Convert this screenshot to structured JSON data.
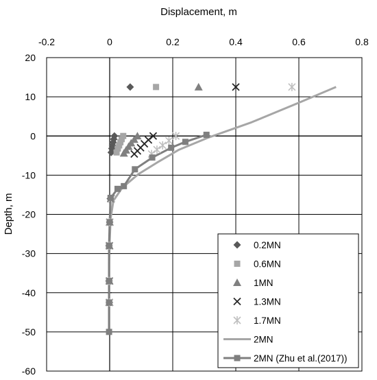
{
  "chart_data": {
    "type": "scatter",
    "title": "",
    "xlabel": "Displacement, m",
    "ylabel": "Depth, m",
    "xlim": [
      -0.2,
      0.8
    ],
    "ylim": [
      -60,
      20
    ],
    "x_ticks": [
      -0.2,
      0,
      0.2,
      0.4,
      0.6,
      0.8
    ],
    "y_ticks": [
      20,
      10,
      0,
      -10,
      -20,
      -30,
      -40,
      -50,
      -60
    ],
    "x_tick_labels": [
      "-0.2",
      "0",
      "0.2",
      "0.4",
      "0.6",
      "0.8"
    ],
    "y_tick_labels": [
      "20",
      "10",
      "0",
      "-10",
      "-20",
      "-30",
      "-40",
      "-50",
      "-60"
    ],
    "x_axis_position": "top",
    "grid": true,
    "legend_position": "bottom-right",
    "series": [
      {
        "name": "0.2MN",
        "marker": "diamond",
        "color": "#595959",
        "points": [
          [
            0.065,
            12.5
          ],
          [
            0.015,
            0
          ],
          [
            0.013,
            -0.8
          ],
          [
            0.011,
            -1.6
          ],
          [
            0.009,
            -2.4
          ],
          [
            0.007,
            -3.2
          ],
          [
            0.005,
            -4.2
          ],
          [
            0.002,
            -16
          ],
          [
            0.0,
            -22
          ],
          [
            -0.002,
            -28
          ],
          [
            -0.002,
            -37
          ],
          [
            -0.001,
            -42.5
          ]
        ]
      },
      {
        "name": "0.6MN",
        "marker": "square",
        "color": "#a6a6a6",
        "points": [
          [
            0.147,
            12.5
          ],
          [
            0.043,
            0
          ],
          [
            0.038,
            -0.8
          ],
          [
            0.034,
            -1.6
          ],
          [
            0.03,
            -2.4
          ],
          [
            0.026,
            -3.2
          ],
          [
            0.022,
            -4.2
          ],
          [
            0.003,
            -16
          ],
          [
            0.0,
            -22
          ],
          [
            -0.001,
            -28
          ],
          [
            -0.001,
            -37
          ],
          [
            -0.001,
            -42.5
          ]
        ]
      },
      {
        "name": "1MN",
        "marker": "triangle",
        "color": "#808080",
        "points": [
          [
            0.282,
            12.5
          ],
          [
            0.088,
            0
          ],
          [
            0.078,
            -0.9
          ],
          [
            0.068,
            -1.8
          ],
          [
            0.06,
            -2.7
          ],
          [
            0.052,
            -3.6
          ],
          [
            0.045,
            -4.4
          ],
          [
            0.004,
            -16
          ],
          [
            0.0,
            -22
          ],
          [
            -0.001,
            -28
          ],
          [
            -0.001,
            -37
          ],
          [
            -0.001,
            -42.5
          ]
        ]
      },
      {
        "name": "1.3MN",
        "marker": "x",
        "color": "#262626",
        "points": [
          [
            0.4,
            12.5
          ],
          [
            0.138,
            0
          ],
          [
            0.123,
            -1.0
          ],
          [
            0.11,
            -2.0
          ],
          [
            0.098,
            -3.0
          ],
          [
            0.088,
            -3.8
          ],
          [
            0.078,
            -4.6
          ],
          [
            0.005,
            -16
          ],
          [
            0.0,
            -22
          ],
          [
            -0.001,
            -28
          ],
          [
            -0.001,
            -37
          ],
          [
            -0.001,
            -42.5
          ]
        ]
      },
      {
        "name": "1.7MN",
        "marker": "star",
        "color": "#bfbfbf",
        "points": [
          [
            0.578,
            12.5
          ],
          [
            0.21,
            0
          ],
          [
            0.188,
            -1.2
          ],
          [
            0.168,
            -2.4
          ],
          [
            0.15,
            -3.5
          ],
          [
            0.133,
            -4.6
          ],
          [
            0.006,
            -16
          ],
          [
            0.0,
            -22
          ],
          [
            -0.002,
            -28
          ],
          [
            -0.002,
            -37
          ],
          [
            -0.001,
            -42.5
          ]
        ]
      },
      {
        "name": "2MN",
        "marker": "none",
        "line": true,
        "color": "#a6a6a6",
        "points": [
          [
            0.718,
            12.5
          ],
          [
            0.6,
            8.5
          ],
          [
            0.45,
            3.5
          ],
          [
            0.31,
            -0.5
          ],
          [
            0.22,
            -3.5
          ],
          [
            0.15,
            -6.8
          ],
          [
            0.09,
            -9.8
          ],
          [
            0.04,
            -13.2
          ],
          [
            0.012,
            -16.5
          ],
          [
            0.003,
            -21
          ],
          [
            0.0,
            -27
          ],
          [
            -0.002,
            -33
          ],
          [
            -0.002,
            -42.5
          ],
          [
            -0.002,
            -50
          ]
        ]
      },
      {
        "name": "2MN (Zhu et al.(2017))",
        "marker": "square",
        "line": true,
        "color": "#7f7f7f",
        "points": [
          [
            0.307,
            0.3
          ],
          [
            0.24,
            -1.5
          ],
          [
            0.195,
            -3.0
          ],
          [
            0.135,
            -5.5
          ],
          [
            0.08,
            -8.5
          ],
          [
            0.045,
            -12.8
          ],
          [
            0.025,
            -13.5
          ],
          [
            0.003,
            -15.8
          ],
          [
            0.0,
            -22
          ],
          [
            -0.002,
            -28
          ],
          [
            -0.002,
            -37
          ],
          [
            -0.002,
            -42.5
          ],
          [
            -0.002,
            -50
          ]
        ]
      }
    ]
  }
}
